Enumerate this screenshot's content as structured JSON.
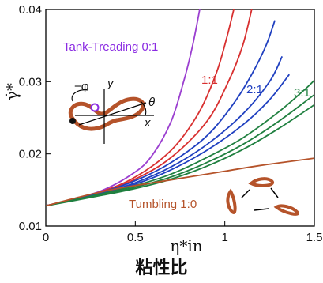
{
  "chart_data": {
    "type": "line",
    "xlabel": "η*in",
    "ylabel": "γ̇*",
    "xlim": [
      0,
      1.5
    ],
    "ylim": [
      0.01,
      0.04
    ],
    "x_ticks": [
      "0",
      "0.5",
      "1",
      "1.5"
    ],
    "y_ticks": [
      "0.01",
      "0.02",
      "0.03",
      "0.04"
    ],
    "caption": "粘性比",
    "annotations": [
      {
        "text": "Tank-Treading 0:1",
        "color": "#8a2be2"
      },
      {
        "text": "1:1",
        "color": "#d83030"
      },
      {
        "text": "2:1",
        "color": "#2040c0"
      },
      {
        "text": "3:1",
        "color": "#208040"
      },
      {
        "text": "Tumbling 1:0",
        "color": "#b5532a"
      }
    ],
    "inset_labels": {
      "phi": "−φ",
      "y": "y",
      "theta": "θ",
      "x": "x"
    },
    "series": [
      {
        "color": "#9b3fd0",
        "points": [
          [
            0,
            0.0128
          ],
          [
            0.3,
            0.0148
          ],
          [
            0.5,
            0.0175
          ],
          [
            0.6,
            0.02
          ],
          [
            0.7,
            0.0245
          ],
          [
            0.77,
            0.03
          ],
          [
            0.82,
            0.035
          ],
          [
            0.86,
            0.04
          ]
        ]
      },
      {
        "color": "#d83030",
        "points": [
          [
            0,
            0.0128
          ],
          [
            0.3,
            0.0147
          ],
          [
            0.5,
            0.0168
          ],
          [
            0.7,
            0.0205
          ],
          [
            0.85,
            0.0255
          ],
          [
            0.95,
            0.031
          ],
          [
            1.01,
            0.036
          ],
          [
            1.05,
            0.04
          ]
        ]
      },
      {
        "color": "#d83030",
        "points": [
          [
            0,
            0.0128
          ],
          [
            0.3,
            0.0146
          ],
          [
            0.5,
            0.0165
          ],
          [
            0.7,
            0.0195
          ],
          [
            0.9,
            0.0245
          ],
          [
            1.02,
            0.03
          ],
          [
            1.1,
            0.035
          ],
          [
            1.15,
            0.04
          ]
        ]
      },
      {
        "color": "#2040c0",
        "points": [
          [
            0,
            0.0128
          ],
          [
            0.3,
            0.0146
          ],
          [
            0.5,
            0.0163
          ],
          [
            0.7,
            0.0188
          ],
          [
            0.9,
            0.0225
          ],
          [
            1.05,
            0.027
          ],
          [
            1.15,
            0.031
          ],
          [
            1.23,
            0.035
          ],
          [
            1.28,
            0.0385
          ]
        ]
      },
      {
        "color": "#2040c0",
        "points": [
          [
            0,
            0.0128
          ],
          [
            0.3,
            0.0145
          ],
          [
            0.5,
            0.016
          ],
          [
            0.7,
            0.0182
          ],
          [
            0.9,
            0.0213
          ],
          [
            1.1,
            0.0255
          ],
          [
            1.25,
            0.03
          ],
          [
            1.32,
            0.0335
          ]
        ]
      },
      {
        "color": "#2040c0",
        "points": [
          [
            0,
            0.0128
          ],
          [
            0.3,
            0.0145
          ],
          [
            0.5,
            0.0158
          ],
          [
            0.7,
            0.0178
          ],
          [
            0.9,
            0.0205
          ],
          [
            1.1,
            0.024
          ],
          [
            1.25,
            0.0275
          ],
          [
            1.36,
            0.031
          ]
        ]
      },
      {
        "color": "#208040",
        "points": [
          [
            0,
            0.0128
          ],
          [
            0.3,
            0.0144
          ],
          [
            0.5,
            0.0156
          ],
          [
            0.7,
            0.0172
          ],
          [
            0.9,
            0.0195
          ],
          [
            1.1,
            0.0222
          ],
          [
            1.3,
            0.0258
          ],
          [
            1.45,
            0.029
          ],
          [
            1.5,
            0.0302
          ]
        ]
      },
      {
        "color": "#208040",
        "points": [
          [
            0,
            0.0128
          ],
          [
            0.3,
            0.0143
          ],
          [
            0.5,
            0.0154
          ],
          [
            0.7,
            0.0168
          ],
          [
            0.9,
            0.0188
          ],
          [
            1.1,
            0.0213
          ],
          [
            1.3,
            0.0245
          ],
          [
            1.5,
            0.0282
          ]
        ]
      },
      {
        "color": "#208040",
        "points": [
          [
            0,
            0.0128
          ],
          [
            0.3,
            0.0142
          ],
          [
            0.5,
            0.0152
          ],
          [
            0.7,
            0.0165
          ],
          [
            0.9,
            0.0183
          ],
          [
            1.1,
            0.0206
          ],
          [
            1.3,
            0.0235
          ],
          [
            1.5,
            0.0268
          ]
        ]
      },
      {
        "color": "#b5532a",
        "points": [
          [
            0,
            0.0128
          ],
          [
            0.2,
            0.0141
          ],
          [
            0.4,
            0.0152
          ],
          [
            0.6,
            0.016
          ],
          [
            0.8,
            0.0168
          ],
          [
            1.0,
            0.0176
          ],
          [
            1.2,
            0.0184
          ],
          [
            1.5,
            0.0194
          ]
        ]
      }
    ]
  }
}
